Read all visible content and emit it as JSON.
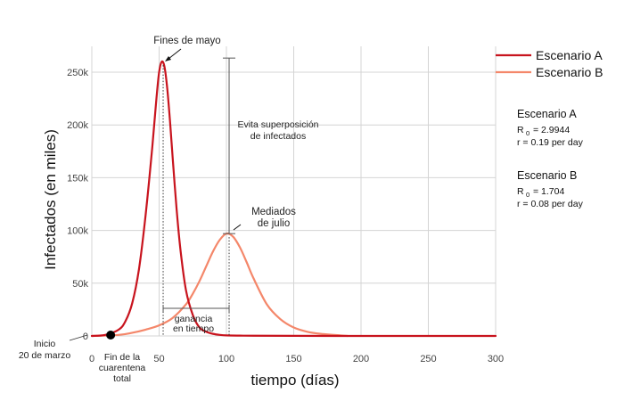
{
  "chart_data": {
    "type": "line",
    "xlabel": "tiempo (días)",
    "ylabel": "Infectados (en miles)",
    "xlim": [
      0,
      300
    ],
    "ylim": [
      0,
      270
    ],
    "x_ticks": [
      "0",
      "50",
      "100",
      "150",
      "200",
      "250",
      "300"
    ],
    "y_ticks": [
      "0",
      "50k",
      "100k",
      "150k",
      "200k",
      "250k"
    ],
    "grid": true,
    "legend_position": "top-right",
    "series": [
      {
        "name": "Escenario A",
        "color": "#c8141e",
        "x": [
          0,
          10,
          20,
          25,
          30,
          35,
          40,
          45,
          48,
          50,
          52,
          54,
          56,
          58,
          60,
          63,
          66,
          70,
          75,
          80,
          85,
          90,
          95,
          100,
          110,
          120,
          150,
          200,
          250,
          300
        ],
        "y": [
          0,
          1,
          6,
          14,
          31,
          63,
          115,
          180,
          225,
          250,
          260,
          255,
          235,
          205,
          170,
          120,
          80,
          43,
          20,
          8,
          4,
          2,
          1,
          0.5,
          0.3,
          0.2,
          0.1,
          0,
          0,
          0
        ]
      },
      {
        "name": "Escenario B",
        "color": "#f4876a",
        "x": [
          0,
          20,
          30,
          40,
          50,
          60,
          70,
          75,
          80,
          85,
          90,
          95,
          100,
          105,
          110,
          115,
          120,
          130,
          140,
          150,
          160,
          170,
          180,
          190
        ],
        "y": [
          0,
          1,
          3,
          6,
          10,
          17,
          30,
          40,
          52,
          66,
          80,
          91,
          97,
          94,
          84,
          70,
          55,
          30,
          16,
          8,
          4,
          2,
          1,
          0
        ]
      }
    ],
    "annotations": {
      "fines_mayo": "Fines de mayo",
      "mediados_julio_1": "Mediados",
      "mediados_julio_2": "de julio",
      "evita_1": "Evita superposición",
      "evita_2": "de infectados",
      "ganancia_1": "ganancia",
      "ganancia_2": "en tiempo",
      "inicio_1": "Inicio",
      "inicio_2": "20 de marzo",
      "fin_1": "Fin de la",
      "fin_2": "cuarentena",
      "fin_3": "total",
      "fin_cuarentena_x": 14,
      "peak_a": {
        "x": 53,
        "y": 260
      },
      "peak_b": {
        "x": 102,
        "y": 97
      }
    },
    "stats": [
      {
        "title": "Escenario A",
        "r0_prefix": "R",
        "r0_sub": "0",
        "r0_value": "= 2.9944",
        "r": "r = 0.19 per day"
      },
      {
        "title": "Escenario B",
        "r0_prefix": "R",
        "r0_sub": "0",
        "r0_value": "= 1.704",
        "r": "r = 0.08 per day"
      }
    ]
  }
}
